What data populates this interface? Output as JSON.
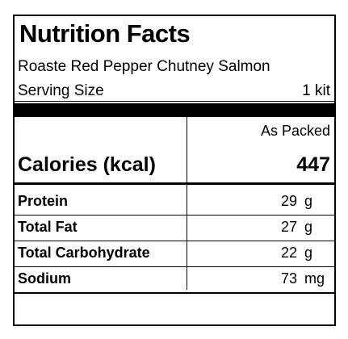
{
  "header": {
    "title": "Nutrition Facts",
    "product": "Roaste Red Pepper Chutney Salmon",
    "serving_label": "Serving Size",
    "serving_value": "1 kit"
  },
  "column_header": "As Packed",
  "calories": {
    "label": "Calories (kcal)",
    "value": "447"
  },
  "nutrients": [
    {
      "name": "Protein",
      "amount": "29",
      "unit": "g"
    },
    {
      "name": "Total Fat",
      "amount": "27",
      "unit": "g"
    },
    {
      "name": "Total Carbohydrate",
      "amount": "22",
      "unit": "g"
    },
    {
      "name": "Sodium",
      "amount": "73",
      "unit": "mg"
    }
  ]
}
